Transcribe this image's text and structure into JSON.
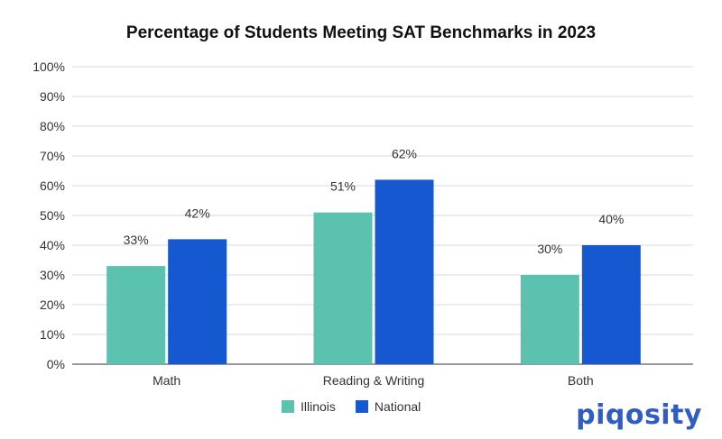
{
  "chart_data": {
    "type": "bar",
    "title": "Percentage of Students Meeting SAT Benchmarks in 2023",
    "categories": [
      "Math",
      "Reading & Writing",
      "Both"
    ],
    "series": [
      {
        "name": "Illinois",
        "values": [
          33,
          51,
          30
        ],
        "labels": [
          "33%",
          "51%",
          "30%"
        ],
        "color": "#5bc2b0"
      },
      {
        "name": "National",
        "values": [
          42,
          62,
          40
        ],
        "labels": [
          "42%",
          "62%",
          "40%"
        ],
        "color": "#1558d0"
      }
    ],
    "ylim": [
      0,
      100
    ],
    "yticks": [
      "0%",
      "10%",
      "20%",
      "30%",
      "40%",
      "50%",
      "60%",
      "70%",
      "80%",
      "90%",
      "100%"
    ],
    "grid": true,
    "legend": "bottom"
  },
  "brand": {
    "logo": "piqosity",
    "color": "#2f5dc4"
  }
}
